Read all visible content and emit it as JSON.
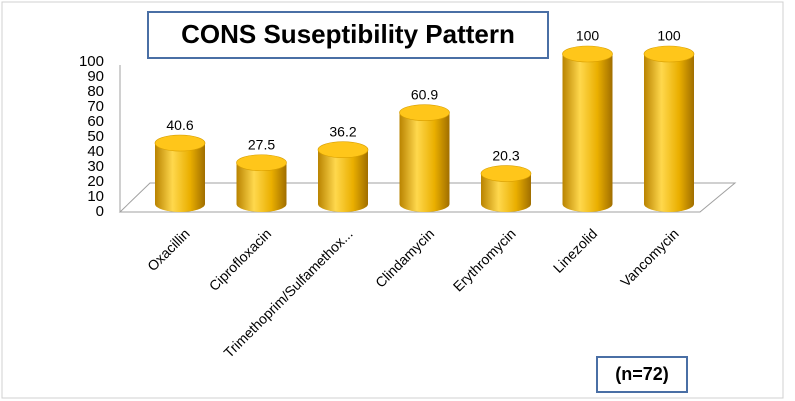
{
  "chart_data": {
    "type": "bar3d",
    "title": "CONS Suseptibility Pattern",
    "annotation": "(n=72)",
    "categories": [
      "Oxacillin",
      "Ciprofloxacin",
      "Trimethoprim/Sulfamethox...",
      "Clindamycin",
      "Erythromycin",
      "Linezolid",
      "Vancomycin"
    ],
    "values": [
      40.6,
      27.5,
      36.2,
      60.9,
      20.3,
      100,
      100
    ],
    "color": "#f2b600",
    "ylim": [
      0,
      100
    ],
    "yticks": [
      0,
      10,
      20,
      30,
      40,
      50,
      60,
      70,
      80,
      90,
      100
    ],
    "grid": false
  }
}
